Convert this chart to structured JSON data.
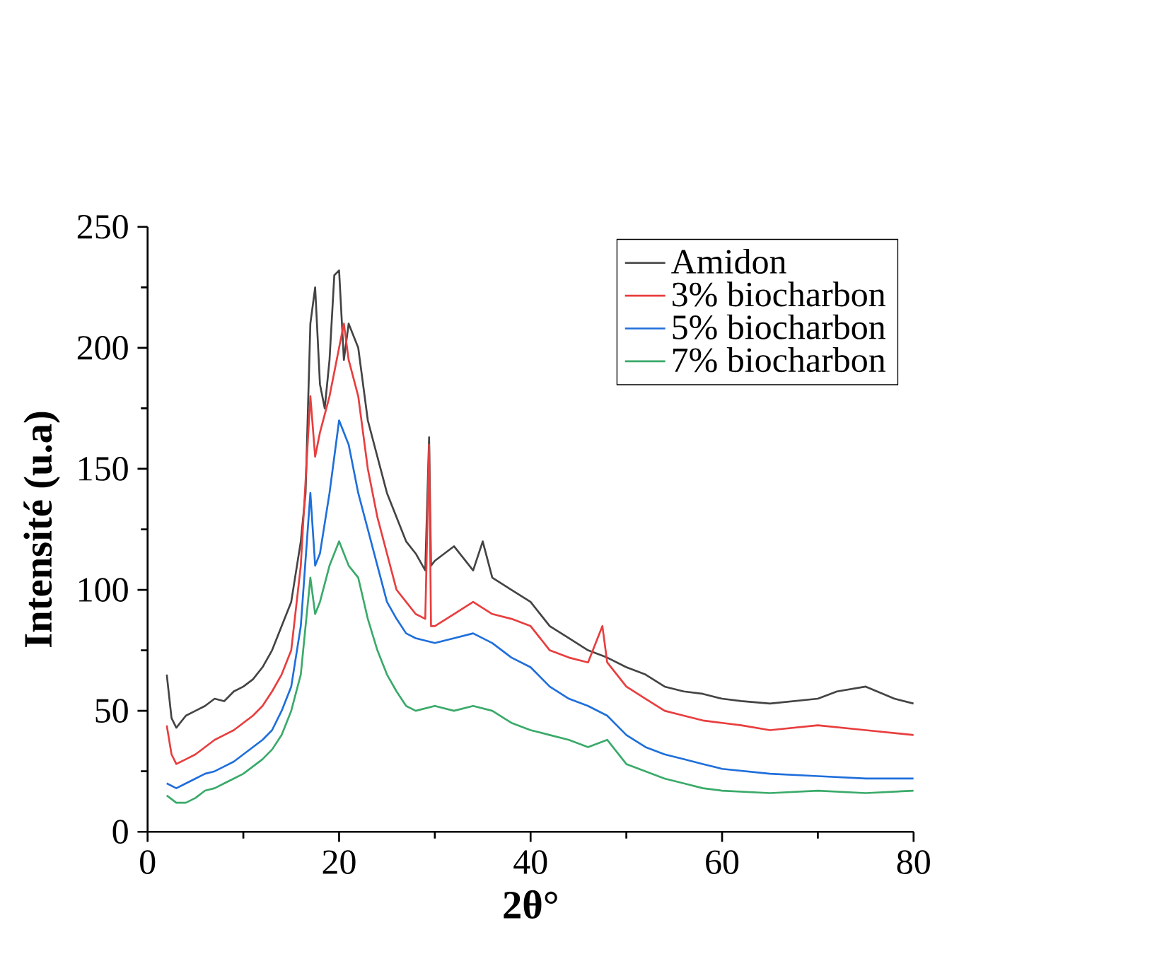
{
  "chart_data": {
    "type": "line",
    "xlabel": "2θ°",
    "ylabel": "Intensité (u.a)",
    "xlim": [
      0,
      80
    ],
    "xticks": [
      0,
      20,
      40,
      60,
      80
    ],
    "ylim": [
      0,
      250
    ],
    "yticks": [
      0,
      50,
      100,
      150,
      200,
      250
    ],
    "grid": false,
    "legend": "top right",
    "marker": "none",
    "line_style": "solid",
    "series": [
      {
        "name": "Amidon",
        "color": "#444444",
        "x": [
          2,
          2.5,
          3,
          4,
          5,
          6,
          7,
          8,
          9,
          10,
          11,
          12,
          13,
          14,
          15,
          16,
          16.5,
          17,
          17.5,
          18,
          18.5,
          19,
          19.5,
          20,
          20.5,
          21,
          22,
          23,
          24,
          25,
          26,
          27,
          28,
          29,
          29.4,
          29.6,
          30,
          32,
          34,
          35,
          36,
          38,
          40,
          42,
          44,
          46,
          48,
          50,
          52,
          54,
          56,
          58,
          60,
          62,
          65,
          70,
          72,
          75,
          78,
          80
        ],
        "values": [
          65,
          47,
          43,
          48,
          50,
          52,
          55,
          54,
          58,
          60,
          63,
          68,
          75,
          85,
          95,
          120,
          140,
          210,
          225,
          185,
          175,
          195,
          230,
          232,
          195,
          210,
          200,
          170,
          155,
          140,
          130,
          120,
          115,
          108,
          163,
          110,
          112,
          118,
          108,
          120,
          105,
          100,
          95,
          85,
          80,
          75,
          72,
          68,
          65,
          60,
          58,
          57,
          55,
          54,
          53,
          55,
          58,
          60,
          55,
          53
        ]
      },
      {
        "name": "3% biocharbon",
        "color": "#e83e3e",
        "x": [
          2,
          2.5,
          3,
          4,
          5,
          6,
          7,
          8,
          9,
          10,
          11,
          12,
          13,
          14,
          15,
          16,
          17,
          17.5,
          18,
          19,
          20,
          20.5,
          21,
          22,
          23,
          24,
          25,
          26,
          27,
          28,
          29,
          29.4,
          29.6,
          30,
          32,
          34,
          36,
          38,
          40,
          42,
          44,
          46,
          47.5,
          48,
          50,
          52,
          54,
          56,
          58,
          60,
          62,
          65,
          70,
          75,
          80
        ],
        "values": [
          44,
          32,
          28,
          30,
          32,
          35,
          38,
          40,
          42,
          45,
          48,
          52,
          58,
          65,
          75,
          110,
          180,
          155,
          165,
          180,
          200,
          210,
          195,
          180,
          150,
          130,
          115,
          100,
          95,
          90,
          88,
          160,
          85,
          85,
          90,
          95,
          90,
          88,
          85,
          75,
          72,
          70,
          85,
          70,
          60,
          55,
          50,
          48,
          46,
          45,
          44,
          42,
          44,
          42,
          40
        ]
      },
      {
        "name": "5% biocharbon",
        "color": "#1f6fdb",
        "x": [
          2,
          3,
          4,
          5,
          6,
          7,
          8,
          9,
          10,
          11,
          12,
          13,
          14,
          15,
          16,
          17,
          17.5,
          18,
          19,
          20,
          21,
          22,
          23,
          24,
          25,
          26,
          27,
          28,
          30,
          32,
          34,
          36,
          38,
          40,
          42,
          44,
          46,
          48,
          50,
          52,
          54,
          56,
          58,
          60,
          65,
          70,
          75,
          80
        ],
        "values": [
          20,
          18,
          20,
          22,
          24,
          25,
          27,
          29,
          32,
          35,
          38,
          42,
          50,
          60,
          85,
          140,
          110,
          115,
          140,
          170,
          160,
          140,
          125,
          110,
          95,
          88,
          82,
          80,
          78,
          80,
          82,
          78,
          72,
          68,
          60,
          55,
          52,
          48,
          40,
          35,
          32,
          30,
          28,
          26,
          24,
          23,
          22,
          22
        ]
      },
      {
        "name": "7% biocharbon",
        "color": "#3aaa6a",
        "x": [
          2,
          3,
          4,
          5,
          6,
          7,
          8,
          9,
          10,
          11,
          12,
          13,
          14,
          15,
          16,
          17,
          17.5,
          18,
          19,
          20,
          21,
          22,
          23,
          24,
          25,
          26,
          27,
          28,
          30,
          32,
          34,
          36,
          38,
          40,
          42,
          44,
          46,
          48,
          50,
          52,
          54,
          56,
          58,
          60,
          65,
          70,
          75,
          80
        ],
        "values": [
          15,
          12,
          12,
          14,
          17,
          18,
          20,
          22,
          24,
          27,
          30,
          34,
          40,
          50,
          65,
          105,
          90,
          95,
          110,
          120,
          110,
          105,
          88,
          75,
          65,
          58,
          52,
          50,
          52,
          50,
          52,
          50,
          45,
          42,
          40,
          38,
          35,
          38,
          28,
          25,
          22,
          20,
          18,
          17,
          16,
          17,
          16,
          17
        ]
      }
    ]
  }
}
